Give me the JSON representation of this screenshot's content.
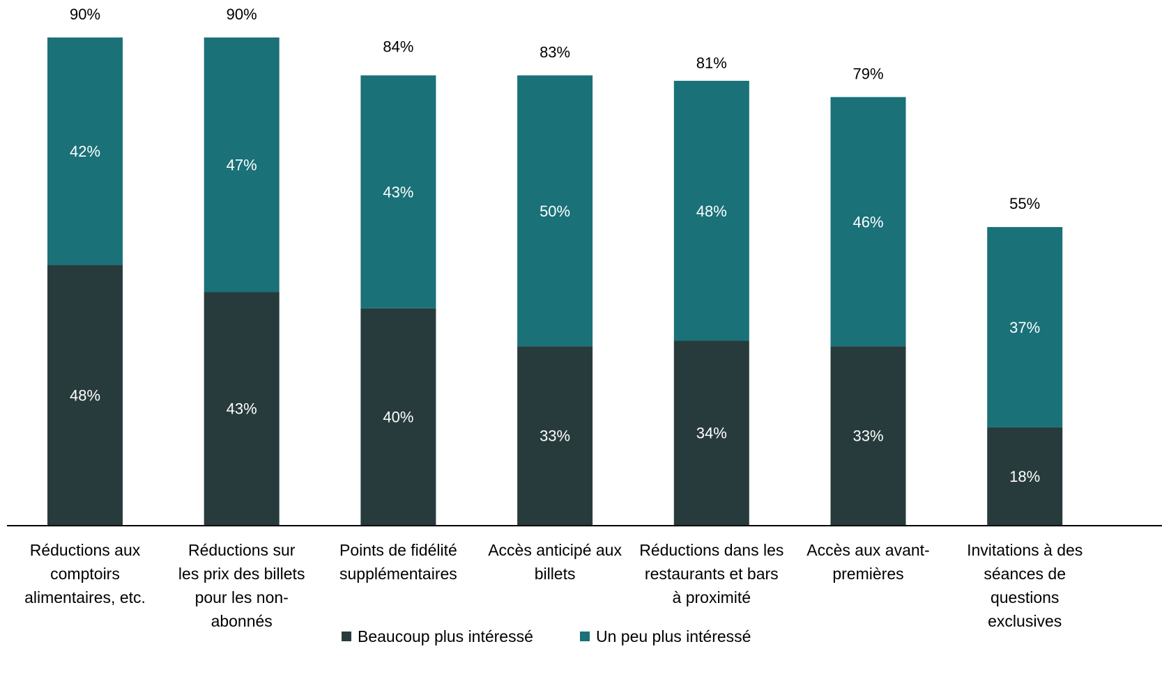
{
  "chart_data": {
    "type": "bar",
    "stacked": true,
    "title": "",
    "xlabel": "",
    "ylabel": "",
    "ylim": [
      0,
      100
    ],
    "grid": false,
    "legend_position": "bottom",
    "categories": [
      "Réductions aux comptoirs alimentaires, etc.",
      "Réductions sur les prix des billets pour les non-abonnés",
      "Points de fidélité supplémentaires",
      "Accès anticipé aux billets",
      "Réductions dans les restaurants et bars à proximité",
      "Accès aux avant-premières",
      "Invitations à des séances de questions exclusives"
    ],
    "category_label_lines": [
      [
        "Réductions aux",
        "comptoirs",
        "alimentaires, etc."
      ],
      [
        "Réductions sur",
        "les prix des billets",
        "pour les non-",
        "abonnés"
      ],
      [
        "Points de fidélité",
        "supplémentaires"
      ],
      [
        "Accès anticipé aux",
        "billets"
      ],
      [
        "Réductions dans les",
        "restaurants et bars",
        "à proximité"
      ],
      [
        "Accès aux avant-",
        "premières"
      ],
      [
        "Invitations à des",
        "séances de",
        "questions",
        "exclusives"
      ]
    ],
    "series": [
      {
        "name": "Beaucoup plus intéressé",
        "color": "#283b3c",
        "values": [
          48,
          43,
          40,
          33,
          34,
          33,
          18
        ]
      },
      {
        "name": "Un peu plus intéressé",
        "color": "#1a7178",
        "values": [
          42,
          47,
          43,
          50,
          48,
          46,
          37
        ]
      }
    ],
    "totals": [
      90,
      90,
      84,
      83,
      81,
      79,
      55
    ],
    "label_suffix": "%"
  },
  "colors": {
    "segment_label": "#ffffff",
    "total_label": "#000000",
    "axis_line": "#000000",
    "category_label": "#000000"
  }
}
